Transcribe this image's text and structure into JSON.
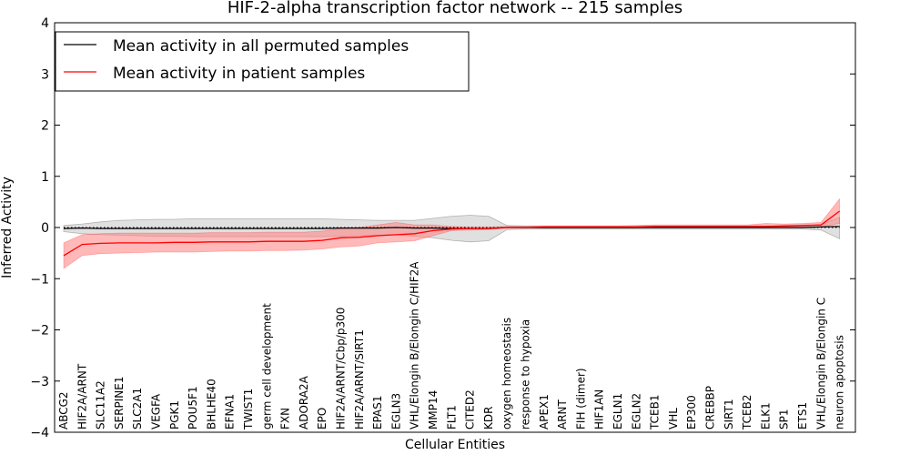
{
  "chart_data": {
    "type": "line",
    "title": "HIF-2-alpha transcription factor network -- 215 samples",
    "xlabel": "Cellular Entities",
    "ylabel": "Inferred Activity",
    "ylim": [
      -4,
      4
    ],
    "yticks": [
      4,
      3,
      2,
      1,
      0,
      -1,
      -2,
      -3,
      -4
    ],
    "yticklabels": [
      "4",
      "3",
      "2",
      "1",
      "0",
      "−1",
      "−2",
      "−3",
      "−4"
    ],
    "legend_position": "top-left",
    "categories": [
      "ABCG2",
      "HIF2A/ARNT",
      "SLC11A2",
      "SERPINE1",
      "SLC2A1",
      "VEGFA",
      "PGK1",
      "POU5F1",
      "BHLHE40",
      "EFNA1",
      "TWIST1",
      "germ cell development",
      "FXN",
      "ADORA2A",
      "EPO",
      "HIF2A/ARNT/Cbp/p300",
      "HIF2A/ARNT/SIRT1",
      "EPAS1",
      "EGLN3",
      "VHL/Elongin B/Elongin C/HIF2A",
      "MMP14",
      "FLT1",
      "CITED2",
      "KDR",
      "oxygen homeostasis",
      "response to hypoxia",
      "APEX1",
      "ARNT",
      "FIH (dimer)",
      "HIF1AN",
      "EGLN1",
      "EGLN2",
      "TCEB1",
      "VHL",
      "EP300",
      "CREBBP",
      "SIRT1",
      "TCEB2",
      "ELK1",
      "SP1",
      "ETS1",
      "VHL/Elongin B/Elongin C",
      "neuron apoptosis"
    ],
    "series": [
      {
        "name": "Mean activity in all permuted samples",
        "color": "#000000",
        "band_color": "#bbbbbb",
        "values": [
          -0.02,
          -0.01,
          -0.02,
          -0.02,
          -0.02,
          -0.02,
          -0.02,
          -0.02,
          -0.02,
          -0.02,
          -0.02,
          -0.02,
          -0.02,
          -0.02,
          -0.02,
          -0.01,
          -0.01,
          -0.01,
          0.0,
          -0.01,
          -0.01,
          -0.02,
          -0.02,
          -0.02,
          0.0,
          0.0,
          0.0,
          0.0,
          0.0,
          0.0,
          0.0,
          0.0,
          0.0,
          0.0,
          0.0,
          0.0,
          0.0,
          0.0,
          0.0,
          0.0,
          0.0,
          0.01,
          0.02
        ],
        "lower": [
          -0.08,
          -0.12,
          -0.14,
          -0.15,
          -0.16,
          -0.17,
          -0.17,
          -0.18,
          -0.18,
          -0.18,
          -0.18,
          -0.18,
          -0.18,
          -0.18,
          -0.18,
          -0.17,
          -0.16,
          -0.15,
          -0.14,
          -0.17,
          -0.2,
          -0.25,
          -0.28,
          -0.26,
          -0.04,
          -0.03,
          -0.03,
          -0.03,
          -0.03,
          -0.03,
          -0.03,
          -0.03,
          -0.03,
          -0.03,
          -0.03,
          -0.03,
          -0.03,
          -0.03,
          -0.03,
          -0.03,
          -0.03,
          -0.05,
          -0.22
        ],
        "upper": [
          0.04,
          0.07,
          0.11,
          0.14,
          0.15,
          0.16,
          0.16,
          0.17,
          0.17,
          0.17,
          0.17,
          0.17,
          0.17,
          0.17,
          0.17,
          0.16,
          0.15,
          0.14,
          0.14,
          0.14,
          0.18,
          0.22,
          0.24,
          0.22,
          0.04,
          0.03,
          0.03,
          0.03,
          0.03,
          0.03,
          0.03,
          0.03,
          0.03,
          0.03,
          0.03,
          0.03,
          0.03,
          0.03,
          0.03,
          0.03,
          0.03,
          0.05,
          0.2
        ]
      },
      {
        "name": "Mean activity in patient samples",
        "color": "#ff0000",
        "band_color": "#ff8080",
        "values": [
          -0.55,
          -0.33,
          -0.31,
          -0.3,
          -0.3,
          -0.3,
          -0.29,
          -0.29,
          -0.28,
          -0.28,
          -0.28,
          -0.27,
          -0.27,
          -0.27,
          -0.25,
          -0.2,
          -0.19,
          -0.16,
          -0.14,
          -0.12,
          -0.06,
          -0.03,
          -0.02,
          -0.02,
          0.0,
          0.0,
          0.01,
          0.01,
          0.01,
          0.01,
          0.01,
          0.01,
          0.02,
          0.02,
          0.02,
          0.02,
          0.02,
          0.02,
          0.02,
          0.03,
          0.04,
          0.05,
          0.32
        ],
        "lower": [
          -0.8,
          -0.55,
          -0.51,
          -0.5,
          -0.49,
          -0.48,
          -0.48,
          -0.48,
          -0.47,
          -0.46,
          -0.46,
          -0.45,
          -0.45,
          -0.44,
          -0.42,
          -0.38,
          -0.36,
          -0.3,
          -0.28,
          -0.26,
          -0.16,
          -0.06,
          -0.05,
          -0.04,
          -0.01,
          -0.01,
          -0.01,
          -0.01,
          -0.01,
          -0.01,
          -0.01,
          -0.01,
          0.0,
          0.0,
          0.0,
          0.0,
          0.0,
          0.0,
          0.0,
          0.0,
          0.0,
          0.01,
          0.08
        ],
        "upper": [
          -0.3,
          -0.14,
          -0.12,
          -0.11,
          -0.11,
          -0.11,
          -0.11,
          -0.11,
          -0.1,
          -0.1,
          -0.1,
          -0.09,
          -0.09,
          -0.09,
          -0.07,
          -0.02,
          0.0,
          0.05,
          0.1,
          0.05,
          0.05,
          0.02,
          0.01,
          0.01,
          0.02,
          0.02,
          0.03,
          0.03,
          0.03,
          0.03,
          0.03,
          0.04,
          0.05,
          0.05,
          0.05,
          0.05,
          0.05,
          0.05,
          0.08,
          0.07,
          0.08,
          0.1,
          0.56
        ]
      }
    ]
  }
}
